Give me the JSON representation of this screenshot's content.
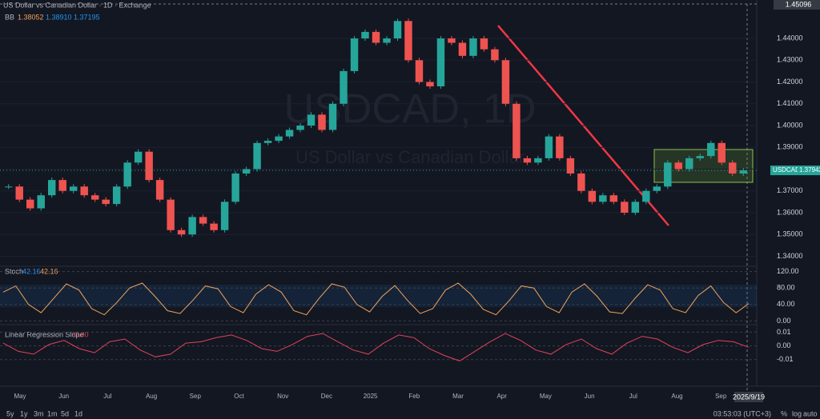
{
  "header": {
    "title": "US Dollar vs Canadian Dollar · 1D · Exchange",
    "bb": "BB",
    "bb_values": [
      "1.38052",
      "1.38910",
      "1.37195"
    ],
    "watermark": "USDCAD, 1D",
    "watermark_sub": "US Dollar vs Canadian Dollar",
    "crosshair_price": "1.45096",
    "symbol": "USDCAD"
  },
  "chart_data": [
    {
      "type": "candlestick",
      "color_up": "#26a69a",
      "color_down": "#ef5350",
      "categories": [
        "May",
        "Jun",
        "Jul",
        "Aug",
        "Sep",
        "Oct",
        "Nov",
        "Dec",
        "2025",
        "Feb",
        "Mar",
        "Apr",
        "May",
        "Jun",
        "Jul",
        "Aug",
        "Sep"
      ],
      "date_label": "2025/9/19",
      "closes": [
        1.372,
        1.366,
        1.362,
        1.368,
        1.375,
        1.37,
        1.372,
        1.368,
        1.366,
        1.364,
        1.372,
        1.383,
        1.388,
        1.375,
        1.366,
        1.352,
        1.35,
        1.358,
        1.355,
        1.352,
        1.365,
        1.378,
        1.38,
        1.392,
        1.393,
        1.395,
        1.398,
        1.4,
        1.405,
        1.398,
        1.41,
        1.425,
        1.44,
        1.443,
        1.438,
        1.44,
        1.448,
        1.43,
        1.42,
        1.418,
        1.44,
        1.438,
        1.432,
        1.44,
        1.435,
        1.43,
        1.41,
        1.385,
        1.383,
        1.385,
        1.395,
        1.385,
        1.378,
        1.37,
        1.365,
        1.368,
        1.365,
        1.36,
        1.365,
        1.37,
        1.372,
        1.383,
        1.38,
        1.385,
        1.386,
        1.392,
        1.383,
        1.378,
        1.37942
      ],
      "ylim": [
        1.3365,
        1.4525
      ],
      "yticks": [
        {
          "value": 1.34,
          "label": "1.34000"
        },
        {
          "value": 1.35,
          "label": "1.35000"
        },
        {
          "value": 1.36,
          "label": "1.36000"
        },
        {
          "value": 1.37,
          "label": "1.37000"
        },
        {
          "value": 1.38,
          "label": "1.38000"
        },
        {
          "value": 1.39,
          "label": "1.39000"
        },
        {
          "value": 1.4,
          "label": "1.40000"
        },
        {
          "value": 1.41,
          "label": "1.41000"
        },
        {
          "value": 1.42,
          "label": "1.42000"
        },
        {
          "value": 1.43,
          "label": "1.43000"
        },
        {
          "value": 1.44,
          "label": "1.44000"
        }
      ]
    },
    {
      "type": "line",
      "title": "Stoch",
      "legend": [
        "42.16",
        "42.16"
      ],
      "color": "#f0a35e",
      "values": [
        70,
        85,
        40,
        20,
        55,
        90,
        75,
        30,
        15,
        45,
        80,
        92,
        60,
        25,
        18,
        50,
        85,
        78,
        35,
        20,
        65,
        88,
        70,
        25,
        15,
        55,
        90,
        82,
        40,
        22,
        60,
        86,
        50,
        18,
        30,
        75,
        92,
        65,
        28,
        15,
        48,
        85,
        80,
        35,
        20,
        70,
        90,
        60,
        22,
        18,
        55,
        88,
        75,
        30,
        20,
        62,
        85,
        45,
        20,
        42.16
      ],
      "ylim": [
        -5,
        125
      ],
      "yticks": [
        {
          "value": 0,
          "label": "0.00"
        },
        {
          "value": 40,
          "label": "40.00"
        },
        {
          "value": 80,
          "label": "80.00"
        },
        {
          "value": 120,
          "label": "120.00"
        }
      ]
    },
    {
      "type": "line",
      "title": "Linear Regression Slope",
      "legend": "-0.00",
      "color": "#e0435a",
      "values": [
        0.002,
        -0.004,
        -0.006,
        0.001,
        0.004,
        -0.002,
        -0.005,
        0.003,
        0.005,
        -0.003,
        -0.008,
        -0.006,
        0.002,
        0.003,
        0.006,
        0.008,
        0.004,
        -0.002,
        -0.004,
        0.001,
        0.007,
        0.009,
        0.003,
        -0.003,
        -0.006,
        0.002,
        0.008,
        0.006,
        -0.002,
        -0.007,
        -0.011,
        -0.004,
        0.003,
        0.009,
        0.004,
        -0.003,
        -0.006,
        0.001,
        0.005,
        -0.002,
        -0.006,
        0.002,
        0.007,
        0.005,
        -0.001,
        -0.005,
        0.001,
        0.004,
        0.003,
        -0.001
      ],
      "ylim": [
        -0.0125,
        0.012
      ],
      "yticks": [
        {
          "value": -0.01,
          "label": "-0.01"
        },
        {
          "value": 0,
          "label": "0.00"
        },
        {
          "value": 0.01,
          "label": "0.01"
        }
      ]
    }
  ],
  "toolbar": {
    "ranges": [
      "5y",
      "1y",
      "3m",
      "1m",
      "5d",
      "1d"
    ],
    "clock": "03:53:03 (UTC+3)",
    "options": [
      "%",
      "log",
      "auto"
    ]
  }
}
